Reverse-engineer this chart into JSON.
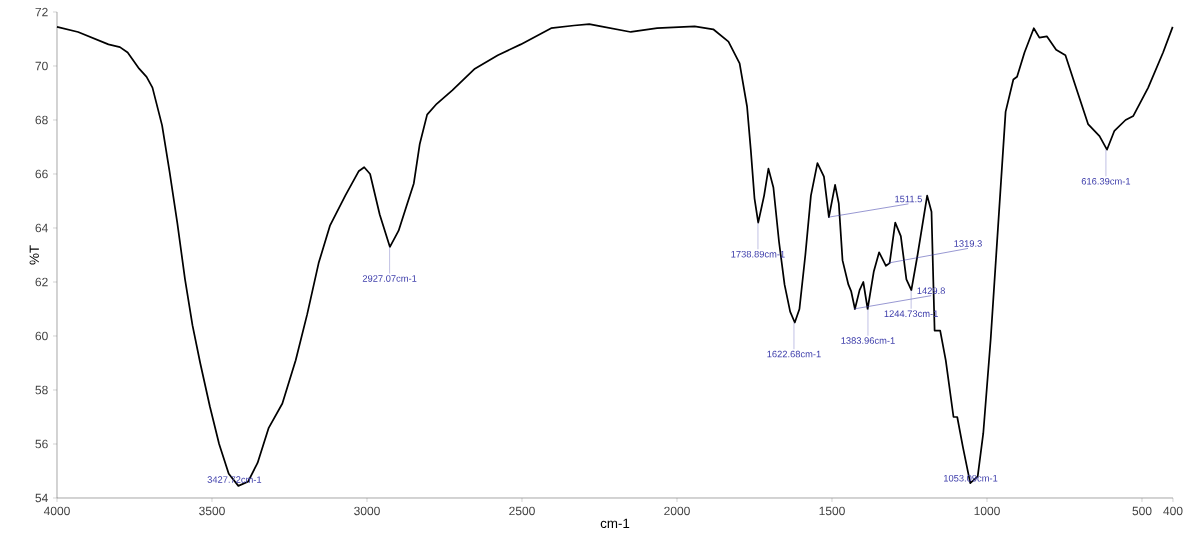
{
  "chart_data": {
    "type": "line",
    "xlabel": "cm-1",
    "ylabel": "%T",
    "color": "#000000",
    "x": [
      4000,
      3932,
      3834,
      3797,
      3772,
      3735,
      3711,
      3692,
      3661,
      3637,
      3612,
      3587,
      3563,
      3538,
      3507,
      3477,
      3446,
      3415,
      3384,
      3353,
      3317,
      3273,
      3230,
      3193,
      3156,
      3119,
      3070,
      3027,
      3009,
      2990,
      2959,
      2926,
      2898,
      2873,
      2849,
      2830,
      2806,
      2775,
      2725,
      2652,
      2578,
      2504,
      2406,
      2332,
      2283,
      2245,
      2149,
      2064,
      1943,
      1883,
      1834,
      1798,
      1774,
      1762,
      1750,
      1738,
      1719,
      1705,
      1689,
      1671,
      1653,
      1635,
      1620,
      1605,
      1586,
      1568,
      1547,
      1526,
      1510,
      1490,
      1478,
      1466,
      1447,
      1438,
      1426,
      1411,
      1399,
      1385,
      1365,
      1348,
      1326,
      1314,
      1296,
      1278,
      1260,
      1244,
      1224,
      1193,
      1179,
      1169,
      1151,
      1133,
      1108,
      1096,
      1078,
      1054,
      1030,
      1012,
      988,
      964,
      940,
      915,
      903,
      879,
      849,
      831,
      807,
      777,
      747,
      710,
      674,
      637,
      613,
      589,
      553,
      528,
      480,
      432,
      401
    ],
    "values": [
      71.45,
      71.26,
      70.8,
      70.7,
      70.5,
      69.9,
      69.6,
      69.2,
      67.8,
      66.1,
      64.2,
      62.1,
      60.4,
      59.0,
      57.4,
      56.0,
      54.9,
      54.45,
      54.6,
      55.3,
      56.6,
      57.5,
      59.1,
      60.8,
      62.7,
      64.1,
      65.2,
      66.1,
      66.25,
      66.0,
      64.5,
      63.3,
      63.9,
      64.8,
      65.65,
      67.1,
      68.2,
      68.6,
      69.1,
      69.9,
      70.4,
      70.8,
      71.4,
      71.5,
      71.55,
      71.47,
      71.26,
      71.4,
      71.47,
      71.36,
      70.9,
      70.1,
      68.5,
      66.9,
      65.1,
      64.2,
      65.2,
      66.2,
      65.5,
      63.5,
      61.9,
      60.9,
      60.5,
      61.0,
      63.0,
      65.2,
      66.4,
      65.9,
      64.4,
      65.6,
      64.9,
      62.8,
      61.9,
      61.65,
      61.0,
      61.7,
      62.0,
      61.0,
      62.4,
      63.1,
      62.6,
      62.7,
      64.2,
      63.7,
      62.1,
      61.7,
      63.0,
      65.2,
      64.6,
      60.2,
      60.2,
      59.1,
      57.0,
      57.0,
      55.9,
      54.55,
      54.8,
      56.4,
      59.9,
      64.1,
      68.3,
      69.5,
      69.6,
      70.5,
      71.4,
      71.05,
      71.1,
      70.6,
      70.4,
      69.1,
      67.85,
      67.4,
      66.9,
      67.6,
      68.0,
      68.15,
      69.2,
      70.5,
      71.45
    ],
    "xlim": [
      4000,
      400
    ],
    "ylim": [
      54,
      72
    ],
    "xticks": [
      4000,
      3500,
      3000,
      2500,
      2000,
      1500,
      1000,
      500,
      400
    ],
    "yticks": [
      54,
      56,
      58,
      60,
      62,
      64,
      66,
      68,
      70,
      72
    ],
    "annotations": [
      {
        "text": "3427.72cm-1",
        "x": 3427.72,
        "y": 54.5
      },
      {
        "text": "2927.07cm-1",
        "x": 2927.07,
        "y": 63.3
      },
      {
        "text": "1738.89cm-1",
        "x": 1738.89,
        "y": 64.2
      },
      {
        "text": "1622.68cm-1",
        "x": 1622.68,
        "y": 60.5
      },
      {
        "text": "1511.5",
        "x": 1511.5,
        "y": 64.4
      },
      {
        "text": "1383.96cm-1",
        "x": 1383.96,
        "y": 61.0
      },
      {
        "text": "1319.3",
        "x": 1319.3,
        "y": 62.7
      },
      {
        "text": "1429.8",
        "x": 1429.8,
        "y": 61.0
      },
      {
        "text": "1244.73cm-1",
        "x": 1244.73,
        "y": 61.7
      },
      {
        "text": "1053.09cm-1",
        "x": 1053.09,
        "y": 54.55
      },
      {
        "text": "616.39cm-1",
        "x": 616.39,
        "y": 66.9
      }
    ]
  }
}
